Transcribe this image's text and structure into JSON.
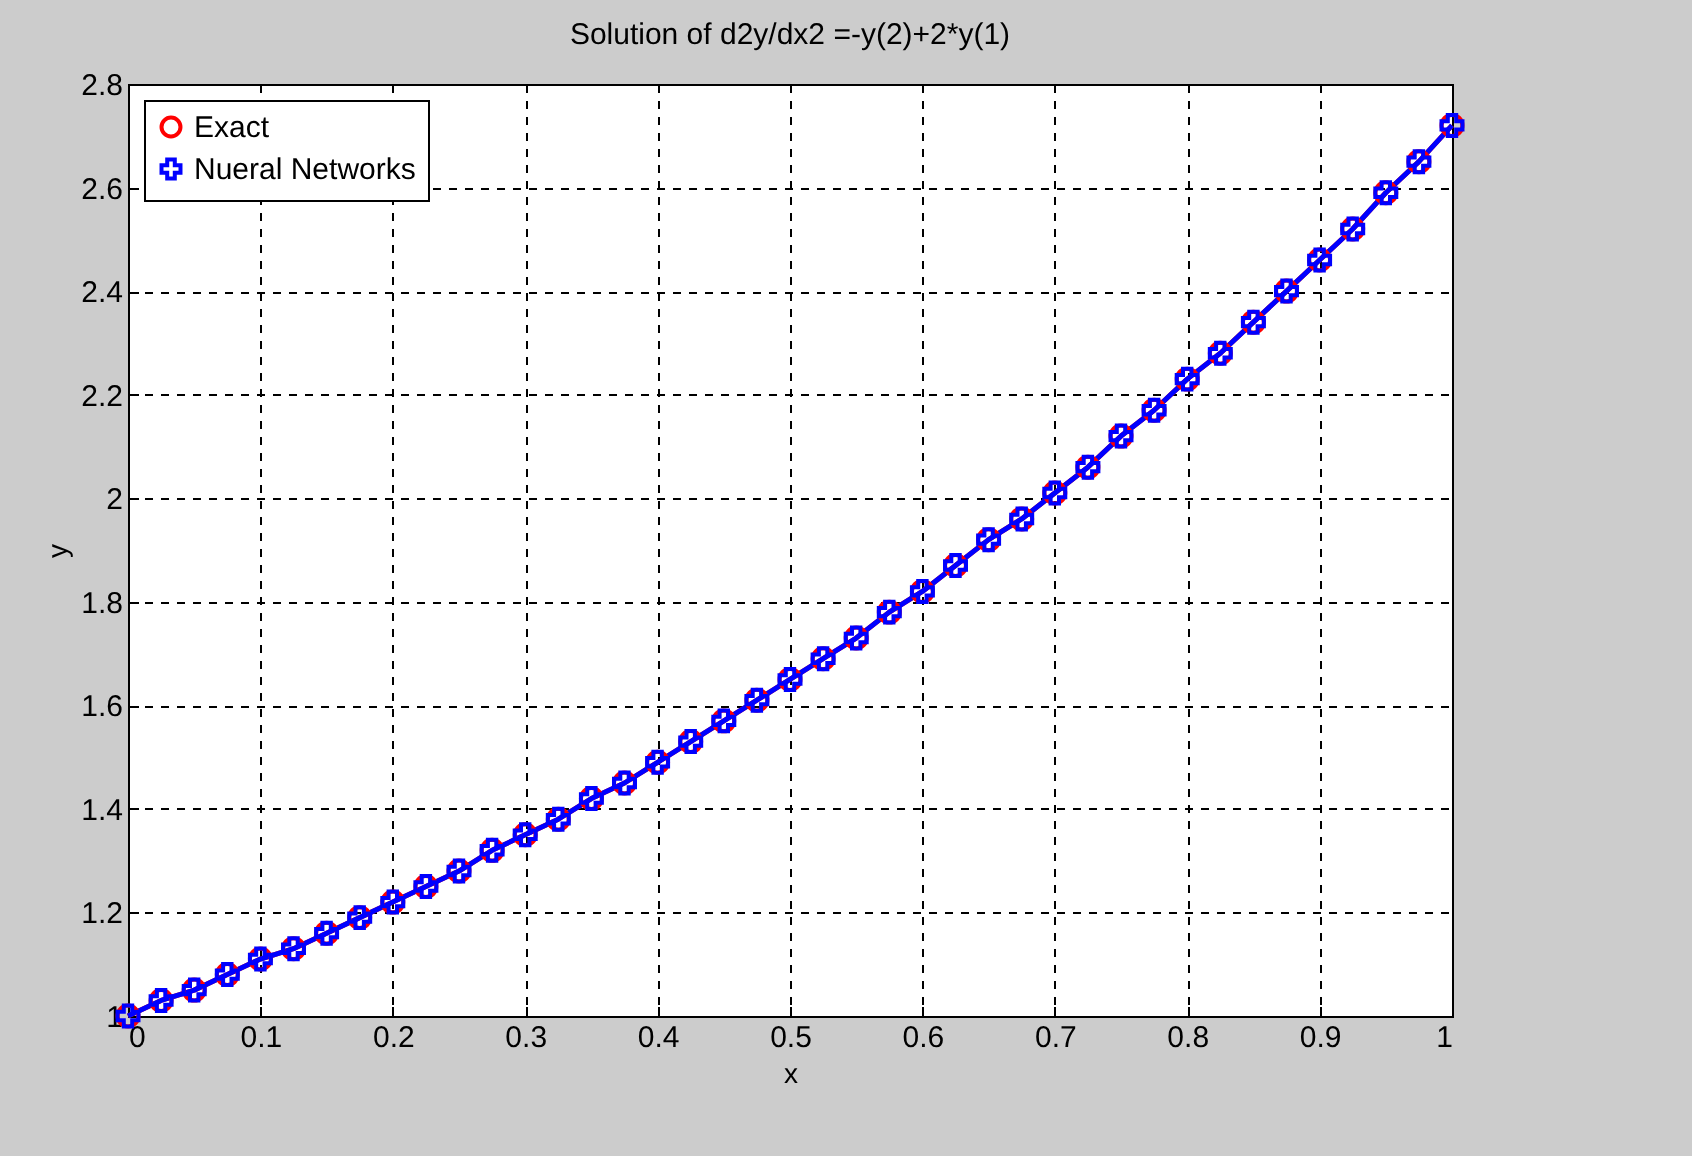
{
  "chart_data": {
    "type": "line",
    "title": "Solution of  d2y/dx2 =-y(2)+2*y(1)",
    "xlabel": "x",
    "ylabel": "y",
    "x": [
      0,
      0.025,
      0.05,
      0.075,
      0.1,
      0.125,
      0.15,
      0.175,
      0.2,
      0.225,
      0.25,
      0.275,
      0.3,
      0.325,
      0.35,
      0.375,
      0.4,
      0.425,
      0.45,
      0.475,
      0.5,
      0.525,
      0.55,
      0.575,
      0.6,
      0.625,
      0.65,
      0.675,
      0.7,
      0.725,
      0.75,
      0.775,
      0.8,
      0.825,
      0.85,
      0.875,
      0.9,
      0.925,
      0.95,
      0.975,
      1
    ],
    "series": [
      {
        "name": "Exact",
        "color": "#ff0000",
        "marker": "circle",
        "values": [
          1.0,
          1.03,
          1.05,
          1.08,
          1.11,
          1.13,
          1.16,
          1.19,
          1.22,
          1.25,
          1.28,
          1.32,
          1.35,
          1.38,
          1.42,
          1.45,
          1.49,
          1.53,
          1.57,
          1.61,
          1.65,
          1.69,
          1.73,
          1.78,
          1.82,
          1.87,
          1.92,
          1.96,
          2.01,
          2.06,
          2.12,
          2.17,
          2.23,
          2.28,
          2.34,
          2.4,
          2.46,
          2.52,
          2.59,
          2.65,
          2.72
        ]
      },
      {
        "name": "Nueral Networks",
        "color": "#0000ff",
        "marker": "cross",
        "values": [
          1.0,
          1.03,
          1.05,
          1.08,
          1.11,
          1.13,
          1.16,
          1.19,
          1.22,
          1.25,
          1.28,
          1.32,
          1.35,
          1.38,
          1.42,
          1.45,
          1.49,
          1.53,
          1.57,
          1.61,
          1.65,
          1.69,
          1.73,
          1.78,
          1.82,
          1.87,
          1.92,
          1.96,
          2.01,
          2.06,
          2.12,
          2.17,
          2.23,
          2.28,
          2.34,
          2.4,
          2.46,
          2.52,
          2.59,
          2.65,
          2.72
        ]
      }
    ],
    "xlim": [
      0,
      1
    ],
    "xticks": [
      0,
      0.1,
      0.2,
      0.3,
      0.4,
      0.5,
      0.6,
      0.7,
      0.8,
      0.9,
      1
    ],
    "ylim": [
      1,
      2.8
    ],
    "yticks": [
      1,
      1.2,
      1.4,
      1.6,
      1.8,
      2,
      2.2,
      2.4,
      2.6,
      2.8
    ],
    "grid": true,
    "legend": "top left",
    "line_style": "solid"
  }
}
